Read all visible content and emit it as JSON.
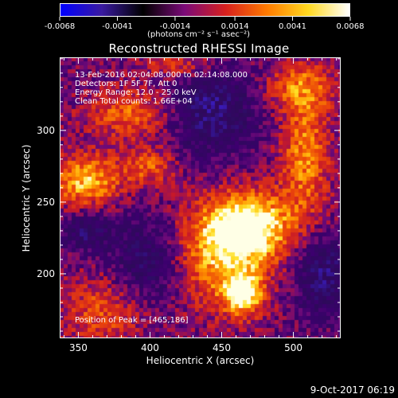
{
  "colorbar": {
    "ticks": [
      "-0.0068",
      "-0.0041",
      "-0.0014",
      "0.0014",
      "0.0041",
      "0.0068"
    ],
    "tick_values": [
      -0.0068,
      -0.0041,
      -0.0014,
      0.0014,
      0.0041,
      0.0068
    ],
    "unit_label": "(photons cm⁻² s⁻¹ asec⁻²)",
    "colors": [
      "#0000ff",
      "#3a1aa0",
      "#000000",
      "#7a0a78",
      "#d8201e",
      "#ff7a00",
      "#ffd820",
      "#ffffff"
    ]
  },
  "chart_data": {
    "type": "heatmap",
    "title": "Reconstructed RHESSI Image",
    "xlabel": "Heliocentric X (arcsec)",
    "ylabel": "Heliocentric Y (arcsec)",
    "xlim": [
      337,
      533
    ],
    "ylim": [
      155,
      351
    ],
    "xticks": [
      350,
      400,
      450,
      500
    ],
    "yticks": [
      200,
      250,
      300
    ],
    "annotations": [
      "13-Feb-2016 02:04:08.000 to 02:14:08.000",
      "Detectors: 1F 5F 7F, Att 0",
      "Energy Range: 12.0 - 25.0 keV",
      "Clean     Total counts: 1.66E+04"
    ],
    "peak_label": "Position of Peak = [465,186]",
    "sources": [
      {
        "x": 468,
        "y": 234,
        "sx": 22,
        "sy": 16,
        "amp": 0.95
      },
      {
        "x": 447,
        "y": 208,
        "sx": 26,
        "sy": 24,
        "amp": 0.62
      },
      {
        "x": 465,
        "y": 186,
        "sx": 9,
        "sy": 10,
        "amp": 0.85
      },
      {
        "x": 355,
        "y": 265,
        "sx": 17,
        "sy": 13,
        "amp": 0.72
      },
      {
        "x": 508,
        "y": 283,
        "sx": 12,
        "sy": 30,
        "amp": 0.58
      },
      {
        "x": 505,
        "y": 330,
        "sx": 18,
        "sy": 12,
        "amp": 0.48
      },
      {
        "x": 390,
        "y": 312,
        "sx": 24,
        "sy": 12,
        "amp": 0.52
      },
      {
        "x": 400,
        "y": 275,
        "sx": 14,
        "sy": 10,
        "amp": 0.45
      },
      {
        "x": 370,
        "y": 175,
        "sx": 22,
        "sy": 18,
        "amp": 0.45
      },
      {
        "x": 420,
        "y": 345,
        "sx": 18,
        "sy": 8,
        "amp": 0.42
      }
    ],
    "negative_regions": [
      {
        "x": 440,
        "y": 315,
        "sx": 24,
        "sy": 22,
        "amp": 0.55
      },
      {
        "x": 400,
        "y": 205,
        "sx": 20,
        "sy": 24,
        "amp": 0.5
      },
      {
        "x": 520,
        "y": 200,
        "sx": 14,
        "sy": 20,
        "amp": 0.5
      },
      {
        "x": 355,
        "y": 230,
        "sx": 12,
        "sy": 10,
        "amp": 0.4
      }
    ]
  },
  "footer": {
    "timestamp": "9-Oct-2017 06:19"
  }
}
